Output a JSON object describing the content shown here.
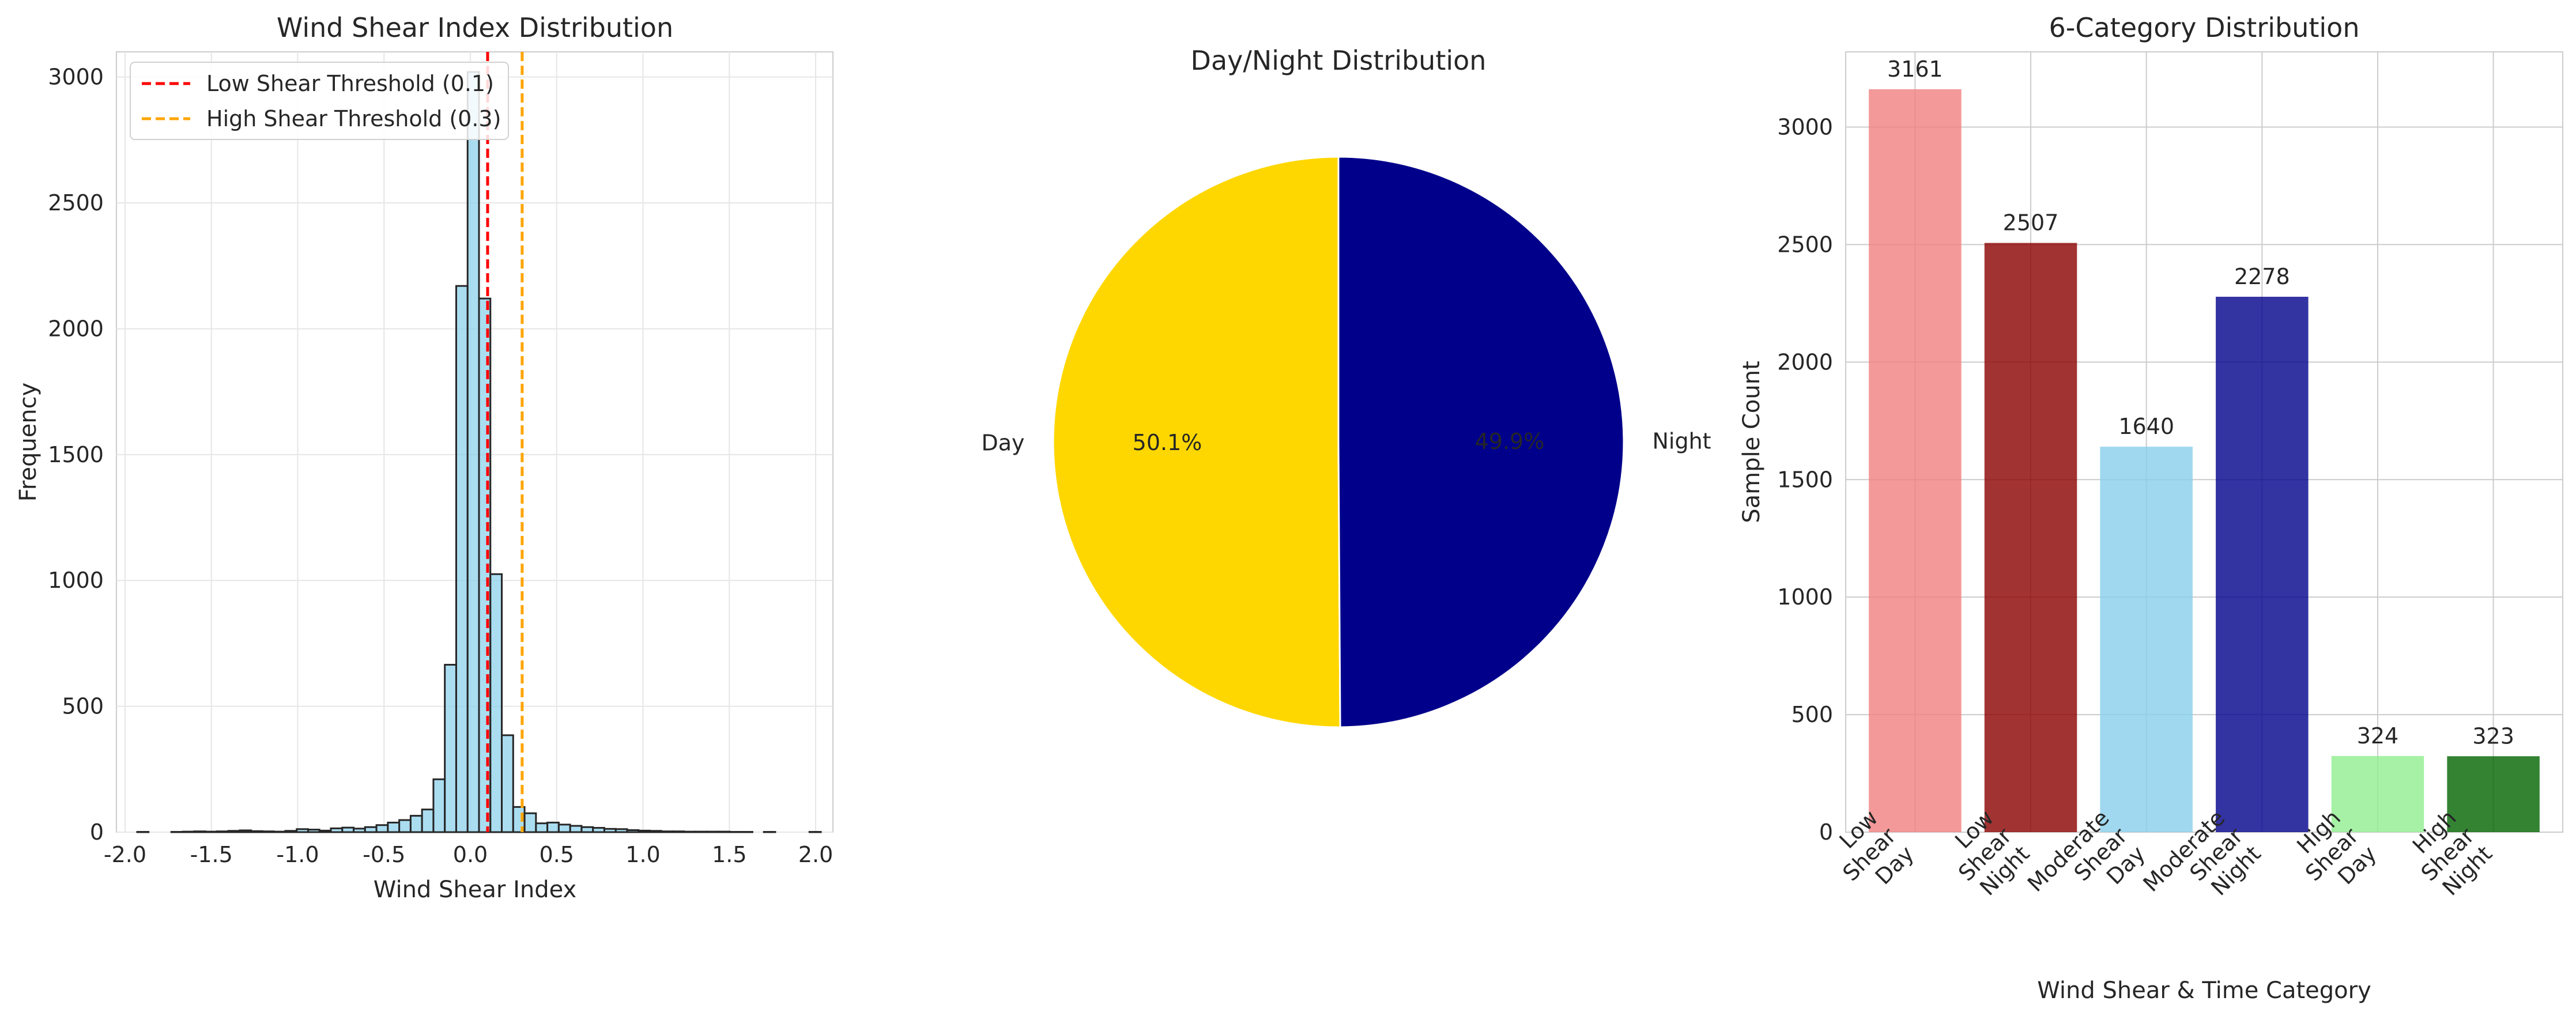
{
  "chart_data": [
    {
      "type": "bar",
      "subtype": "histogram",
      "title": "Wind Shear Index Distribution",
      "xlabel": "Wind Shear Index",
      "ylabel": "Frequency",
      "xlim": [
        -2.05,
        2.1
      ],
      "ylim": [
        0,
        3100
      ],
      "xticks": [
        "-2.0",
        "-1.5",
        "-1.0",
        "-0.5",
        "0.0",
        "0.5",
        "1.0",
        "1.5",
        "2.0"
      ],
      "xtick_values": [
        -2.0,
        -1.5,
        -1.0,
        -0.5,
        0.0,
        0.5,
        1.0,
        1.5,
        2.0
      ],
      "yticks": [
        "0",
        "500",
        "1000",
        "1500",
        "2000",
        "2500",
        "3000"
      ],
      "ytick_values": [
        0,
        500,
        1000,
        1500,
        2000,
        2500,
        3000
      ],
      "grid": true,
      "bar_color": "#87ceeb",
      "edge_color": "#262626",
      "bin_width": 0.066,
      "bin_starts": [
        -1.93,
        -1.864,
        -1.798,
        -1.732,
        -1.666,
        -1.6,
        -1.534,
        -1.468,
        -1.402,
        -1.336,
        -1.27,
        -1.204,
        -1.138,
        -1.072,
        -1.006,
        -0.94,
        -0.874,
        -0.808,
        -0.742,
        -0.676,
        -0.61,
        -0.544,
        -0.478,
        -0.412,
        -0.346,
        -0.28,
        -0.214,
        -0.148,
        -0.082,
        -0.016,
        0.05,
        0.116,
        0.182,
        0.248,
        0.314,
        0.38,
        0.446,
        0.512,
        0.578,
        0.644,
        0.71,
        0.776,
        0.842,
        0.908,
        0.974,
        1.04,
        1.106,
        1.172,
        1.238,
        1.304,
        1.37,
        1.436,
        1.502,
        1.568,
        1.634,
        1.7,
        1.766,
        1.832,
        1.898,
        1.964
      ],
      "counts": [
        1,
        0,
        0,
        1,
        2,
        3,
        2,
        3,
        5,
        7,
        4,
        3,
        2,
        5,
        12,
        10,
        6,
        15,
        18,
        14,
        20,
        28,
        38,
        48,
        65,
        90,
        210,
        665,
        2170,
        3020,
        2120,
        1025,
        385,
        100,
        75,
        35,
        38,
        30,
        25,
        20,
        17,
        13,
        12,
        8,
        6,
        5,
        3,
        3,
        2,
        2,
        2,
        2,
        1,
        1,
        0,
        1,
        0,
        0,
        0,
        1
      ],
      "reference_lines": [
        {
          "label": "Low Shear Threshold (0.1)",
          "x": 0.1,
          "color": "#ff0000"
        },
        {
          "label": "High Shear Threshold (0.3)",
          "x": 0.3,
          "color": "#ffa500"
        }
      ],
      "legend": "upper-left"
    },
    {
      "type": "pie",
      "title": "Day/Night Distribution",
      "labels": [
        "Day",
        "Night"
      ],
      "values": [
        50.1,
        49.9
      ],
      "pct_labels": [
        "50.1%",
        "49.9%"
      ],
      "colors": [
        "#ffd700",
        "#00008b"
      ],
      "start_angle_deg": 90
    },
    {
      "type": "bar",
      "title": "6-Category Distribution",
      "xlabel": "Wind Shear & Time Category",
      "ylabel": "Sample Count",
      "categories": [
        "Low\nShear\nDay",
        "Low\nShear\nNight",
        "Moderate\nShear\nDay",
        "Moderate\nShear\nNight",
        "High\nShear\nDay",
        "High\nShear\nNight"
      ],
      "values": [
        3161,
        2507,
        1640,
        2278,
        324,
        323
      ],
      "value_labels": [
        "3161",
        "2507",
        "1640",
        "2278",
        "324",
        "323"
      ],
      "colors": [
        "#f08080",
        "#8b0000",
        "#87ceeb",
        "#00008b",
        "#90ee90",
        "#006400"
      ],
      "ylim": [
        0,
        3320
      ],
      "yticks": [
        "0",
        "500",
        "1000",
        "1500",
        "2000",
        "2500",
        "3000"
      ],
      "ytick_values": [
        0,
        500,
        1000,
        1500,
        2000,
        2500,
        3000
      ],
      "grid": true
    }
  ]
}
